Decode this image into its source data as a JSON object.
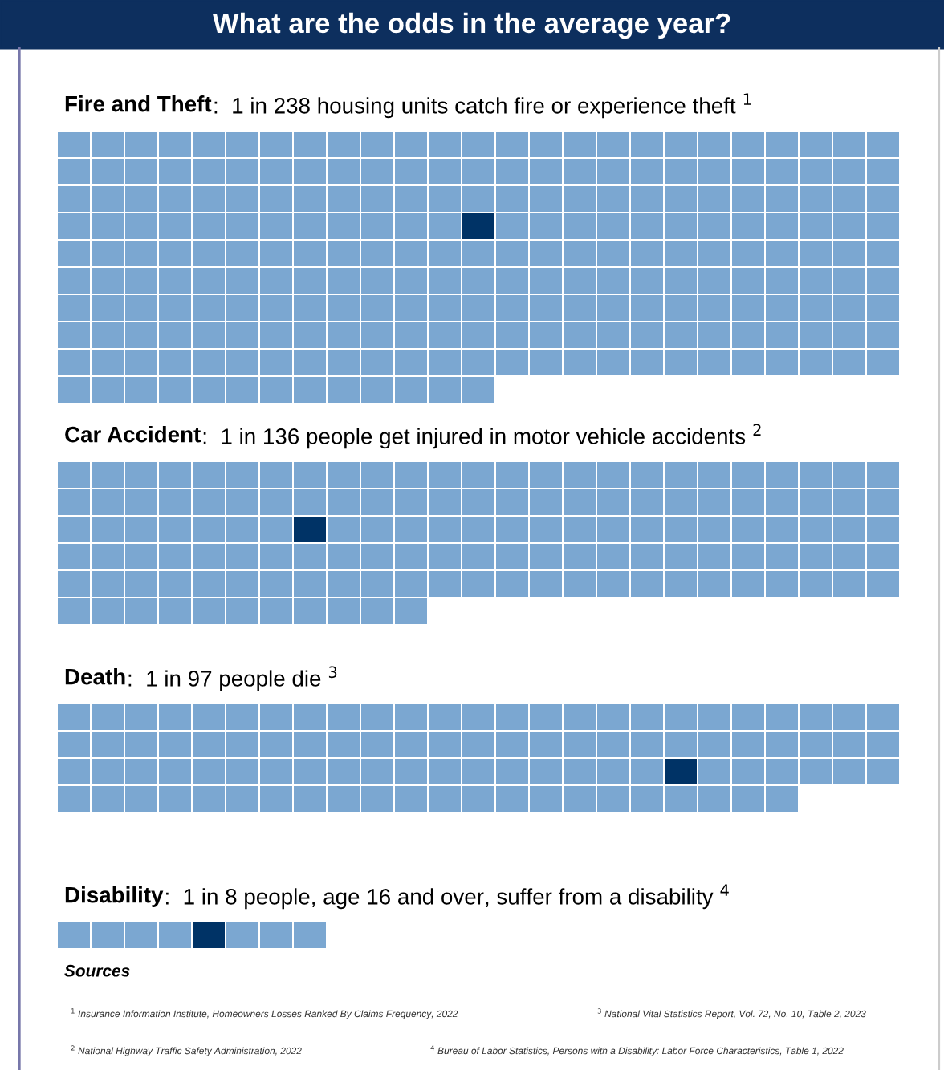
{
  "chart_data": {
    "type": "other",
    "title": "What are the odds in the average year?",
    "categories": [
      "Fire and Theft",
      "Car Accident",
      "Death",
      "Disability"
    ],
    "values": [
      238,
      136,
      97,
      8
    ],
    "value_labels": [
      ":  1 in 238 housing units catch fire or experience theft $^{1}$",
      ":  1 in 136 people get injured in motor vehicle accidents $^{2}$",
      ":  1 in 97 people die $^{3}$",
      ":  1 in 8 people, age 16 and over, suffer from a disability $^{4}$"
    ],
    "color": "#7ba7d1",
    "colors": [
      "#003366",
      "#003366",
      "#003366",
      "#003366"
    ],
    "annotations": [
      "Sources",
      "$^{1}$ Insurance Information Institute, Homeowners Losses Ranked By Claims Frequency, 2022",
      "$^{2}$ National Highway Traffic Safety Administration, 2022",
      "$^{3}$ National Vital Statistics Report, Vol. 72, No. 10, Table 2, 2023",
      "$^{4}$ Bureau of Labor Statistics, Persons with a Disability: Labor Force Characteristics, Table 1, 2022"
    ]
  }
}
